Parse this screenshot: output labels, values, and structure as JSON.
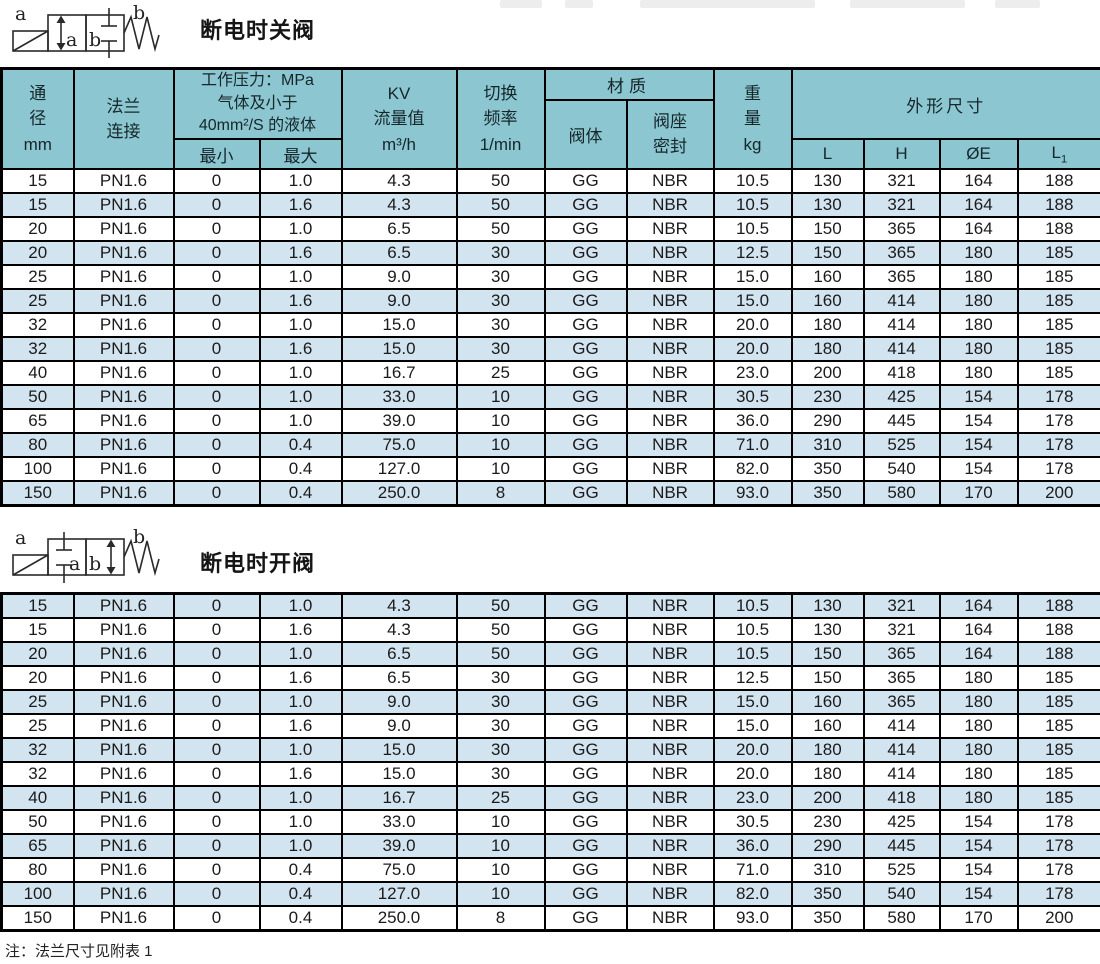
{
  "colors": {
    "header_bg": "#8cc6d0",
    "stripe_bg": "#d2e4ef",
    "border": "#000000",
    "text": "#1a1a1a"
  },
  "sections": {
    "closed": {
      "title": "断电时关阀"
    },
    "open": {
      "title": "断电时开阀"
    }
  },
  "symbols": {
    "port_a": "a",
    "port_b": "b",
    "inner_a": "a",
    "inner_b": "b"
  },
  "table": {
    "header": {
      "diameter_lines": [
        "通",
        "径",
        "mm"
      ],
      "flange_lines": [
        "法兰",
        "连接"
      ],
      "pressure_lines": [
        "工作压力：MPa",
        "气体及小于",
        "40mm²/S 的液体"
      ],
      "pressure_min": "最小",
      "pressure_max": "最大",
      "kv_lines": [
        "KV",
        "流量值",
        "m³/h"
      ],
      "freq_lines": [
        "切换",
        "频率",
        "1/min"
      ],
      "material": "材质",
      "material_body": "阀体",
      "material_seal_lines": [
        "阀座",
        "密封"
      ],
      "weight_lines": [
        "重",
        "量",
        "kg"
      ],
      "dimensions": "外形尺寸",
      "dim_l": "L",
      "dim_h": "H",
      "dim_e": "ØE",
      "dim_l1_base": "L",
      "dim_l1_sub": "1"
    },
    "rows": [
      [
        "15",
        "PN1.6",
        "0",
        "1.0",
        "4.3",
        "50",
        "GG",
        "NBR",
        "10.5",
        "130",
        "321",
        "164",
        "188"
      ],
      [
        "15",
        "PN1.6",
        "0",
        "1.6",
        "4.3",
        "50",
        "GG",
        "NBR",
        "10.5",
        "130",
        "321",
        "164",
        "188"
      ],
      [
        "20",
        "PN1.6",
        "0",
        "1.0",
        "6.5",
        "50",
        "GG",
        "NBR",
        "10.5",
        "150",
        "365",
        "164",
        "188"
      ],
      [
        "20",
        "PN1.6",
        "0",
        "1.6",
        "6.5",
        "30",
        "GG",
        "NBR",
        "12.5",
        "150",
        "365",
        "180",
        "185"
      ],
      [
        "25",
        "PN1.6",
        "0",
        "1.0",
        "9.0",
        "30",
        "GG",
        "NBR",
        "15.0",
        "160",
        "365",
        "180",
        "185"
      ],
      [
        "25",
        "PN1.6",
        "0",
        "1.6",
        "9.0",
        "30",
        "GG",
        "NBR",
        "15.0",
        "160",
        "414",
        "180",
        "185"
      ],
      [
        "32",
        "PN1.6",
        "0",
        "1.0",
        "15.0",
        "30",
        "GG",
        "NBR",
        "20.0",
        "180",
        "414",
        "180",
        "185"
      ],
      [
        "32",
        "PN1.6",
        "0",
        "1.6",
        "15.0",
        "30",
        "GG",
        "NBR",
        "20.0",
        "180",
        "414",
        "180",
        "185"
      ],
      [
        "40",
        "PN1.6",
        "0",
        "1.0",
        "16.7",
        "25",
        "GG",
        "NBR",
        "23.0",
        "200",
        "418",
        "180",
        "185"
      ],
      [
        "50",
        "PN1.6",
        "0",
        "1.0",
        "33.0",
        "10",
        "GG",
        "NBR",
        "30.5",
        "230",
        "425",
        "154",
        "178"
      ],
      [
        "65",
        "PN1.6",
        "0",
        "1.0",
        "39.0",
        "10",
        "GG",
        "NBR",
        "36.0",
        "290",
        "445",
        "154",
        "178"
      ],
      [
        "80",
        "PN1.6",
        "0",
        "0.4",
        "75.0",
        "10",
        "GG",
        "NBR",
        "71.0",
        "310",
        "525",
        "154",
        "178"
      ],
      [
        "100",
        "PN1.6",
        "0",
        "0.4",
        "127.0",
        "10",
        "GG",
        "NBR",
        "82.0",
        "350",
        "540",
        "154",
        "178"
      ],
      [
        "150",
        "PN1.6",
        "0",
        "0.4",
        "250.0",
        "8",
        "GG",
        "NBR",
        "93.0",
        "350",
        "580",
        "170",
        "200"
      ]
    ]
  },
  "note": "注：法兰尺寸见附表 1"
}
